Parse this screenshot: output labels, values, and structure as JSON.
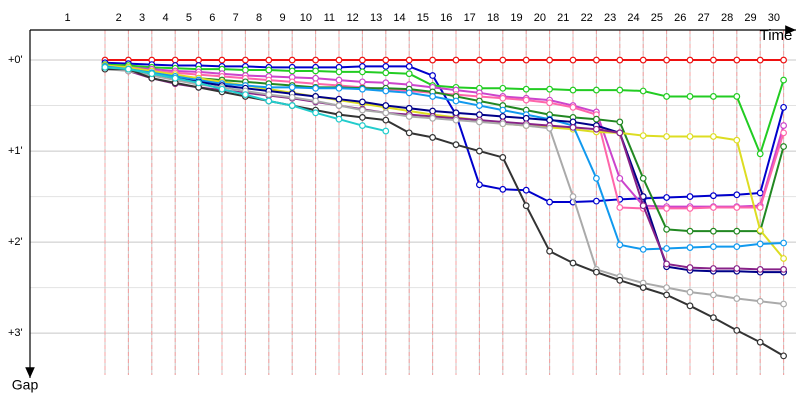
{
  "chart_data": {
    "type": "line",
    "x_label": "Time",
    "y_label": "Gap",
    "categories": [
      "1",
      "2",
      "3",
      "4",
      "5",
      "6",
      "7",
      "8",
      "9",
      "10",
      "11",
      "12",
      "13",
      "14",
      "15",
      "16",
      "17",
      "18",
      "19",
      "20",
      "21",
      "22",
      "23",
      "24",
      "25",
      "26",
      "27",
      "28",
      "29",
      "30"
    ],
    "ylim": [
      -0.33,
      3.46
    ],
    "yticks": [
      {
        "value": 0,
        "label": "+0'"
      },
      {
        "value": 1,
        "label": "+1'"
      },
      {
        "value": 2,
        "label": "+2'"
      },
      {
        "value": 3,
        "label": "+3'"
      }
    ],
    "minor_yticks": [
      0.5,
      1.5,
      2.5
    ],
    "grid": true,
    "series": [
      {
        "color": "#ee1111",
        "values": [
          0,
          0,
          0,
          0,
          0,
          0,
          0,
          0,
          0,
          0,
          0,
          0,
          0,
          0,
          0,
          0,
          0,
          0,
          0,
          0,
          0,
          0,
          0,
          0,
          0,
          0,
          0,
          0,
          0,
          0
        ]
      },
      {
        "color": "#0000cc",
        "values": [
          0.03,
          0.04,
          0.05,
          0.06,
          0.06,
          0.07,
          0.07,
          0.08,
          0.08,
          0.08,
          0.08,
          0.07,
          0.07,
          0.07,
          0.17,
          0.6,
          1.37,
          1.42,
          1.43,
          1.56,
          1.56,
          1.55,
          1.53,
          1.52,
          1.51,
          1.5,
          1.49,
          1.48,
          1.46,
          0.52
        ]
      },
      {
        "color": "#22cc22",
        "values": [
          0.05,
          0.06,
          0.08,
          0.09,
          0.1,
          0.1,
          0.11,
          0.11,
          0.12,
          0.12,
          0.13,
          0.13,
          0.14,
          0.15,
          0.28,
          0.3,
          0.31,
          0.31,
          0.32,
          0.32,
          0.33,
          0.33,
          0.33,
          0.34,
          0.4,
          0.4,
          0.4,
          0.4,
          1.03,
          0.22
        ]
      },
      {
        "color": "#cc44cc",
        "values": [
          0.06,
          0.08,
          0.1,
          0.12,
          0.13,
          0.15,
          0.17,
          0.18,
          0.19,
          0.2,
          0.22,
          0.24,
          0.25,
          0.27,
          0.3,
          0.33,
          0.36,
          0.4,
          0.42,
          0.44,
          0.5,
          0.57,
          1.3,
          1.6,
          1.61,
          1.61,
          1.61,
          1.61,
          1.6,
          0.72
        ]
      },
      {
        "color": "#ff66aa",
        "values": [
          0.07,
          0.09,
          0.12,
          0.14,
          0.16,
          0.18,
          0.2,
          0.22,
          0.24,
          0.26,
          0.28,
          0.3,
          0.32,
          0.34,
          0.36,
          0.38,
          0.4,
          0.42,
          0.44,
          0.47,
          0.52,
          0.6,
          1.62,
          1.63,
          1.63,
          1.63,
          1.62,
          1.62,
          1.62,
          0.8
        ]
      },
      {
        "color": "#228822",
        "values": [
          0.08,
          0.1,
          0.14,
          0.17,
          0.2,
          0.22,
          0.24,
          0.26,
          0.28,
          0.3,
          0.3,
          0.31,
          0.31,
          0.32,
          0.35,
          0.4,
          0.45,
          0.5,
          0.55,
          0.6,
          0.63,
          0.65,
          0.68,
          1.3,
          1.86,
          1.88,
          1.88,
          1.88,
          1.88,
          0.95
        ]
      },
      {
        "color": "#dddd22",
        "values": [
          0.06,
          0.08,
          0.12,
          0.16,
          0.2,
          0.24,
          0.28,
          0.32,
          0.36,
          0.4,
          0.44,
          0.48,
          0.52,
          0.56,
          0.6,
          0.63,
          0.66,
          0.7,
          0.72,
          0.74,
          0.76,
          0.79,
          0.8,
          0.83,
          0.84,
          0.84,
          0.84,
          0.88,
          1.87,
          2.18
        ]
      },
      {
        "color": "#1199ee",
        "values": [
          0.07,
          0.1,
          0.14,
          0.18,
          0.22,
          0.26,
          0.28,
          0.3,
          0.3,
          0.31,
          0.31,
          0.32,
          0.34,
          0.36,
          0.4,
          0.45,
          0.5,
          0.55,
          0.6,
          0.65,
          0.72,
          1.3,
          2.03,
          2.08,
          2.07,
          2.06,
          2.05,
          2.05,
          2.02,
          2.01
        ]
      },
      {
        "color": "#000088",
        "values": [
          0.08,
          0.11,
          0.16,
          0.2,
          0.24,
          0.28,
          0.31,
          0.34,
          0.37,
          0.4,
          0.43,
          0.46,
          0.5,
          0.53,
          0.56,
          0.58,
          0.6,
          0.62,
          0.64,
          0.66,
          0.68,
          0.72,
          0.8,
          1.5,
          2.27,
          2.31,
          2.32,
          2.32,
          2.33,
          2.33
        ]
      },
      {
        "color": "#882288",
        "values": [
          0.09,
          0.12,
          0.2,
          0.26,
          0.3,
          0.33,
          0.36,
          0.39,
          0.42,
          0.46,
          0.5,
          0.54,
          0.58,
          0.6,
          0.62,
          0.64,
          0.66,
          0.68,
          0.7,
          0.72,
          0.74,
          0.76,
          0.8,
          1.6,
          2.24,
          2.28,
          2.29,
          2.29,
          2.3,
          2.3
        ]
      },
      {
        "color": "#aaaaaa",
        "values": [
          0.1,
          0.12,
          0.17,
          0.22,
          0.27,
          0.3,
          0.34,
          0.38,
          0.41,
          0.45,
          0.5,
          0.55,
          0.58,
          0.62,
          0.64,
          0.66,
          0.68,
          0.7,
          0.72,
          0.75,
          1.5,
          2.3,
          2.38,
          2.45,
          2.5,
          2.55,
          2.58,
          2.62,
          2.65,
          2.68
        ]
      },
      {
        "color": "#333333",
        "values": [
          0.1,
          0.1,
          0.2,
          0.25,
          0.3,
          0.35,
          0.4,
          0.45,
          0.5,
          0.55,
          0.6,
          0.63,
          0.66,
          0.8,
          0.85,
          0.93,
          1.0,
          1.07,
          1.6,
          2.1,
          2.23,
          2.33,
          2.42,
          2.5,
          2.58,
          2.7,
          2.83,
          2.97,
          3.1,
          3.25
        ]
      },
      {
        "color": "#22cccc",
        "values": [
          0.08,
          0.1,
          0.15,
          0.2,
          0.25,
          0.32,
          0.38,
          0.45,
          0.5,
          0.58,
          0.65,
          0.72,
          0.78,
          null,
          null,
          null,
          null,
          null,
          null,
          null,
          null,
          null,
          null,
          null,
          null,
          null,
          null,
          null,
          null,
          null
        ]
      }
    ]
  }
}
